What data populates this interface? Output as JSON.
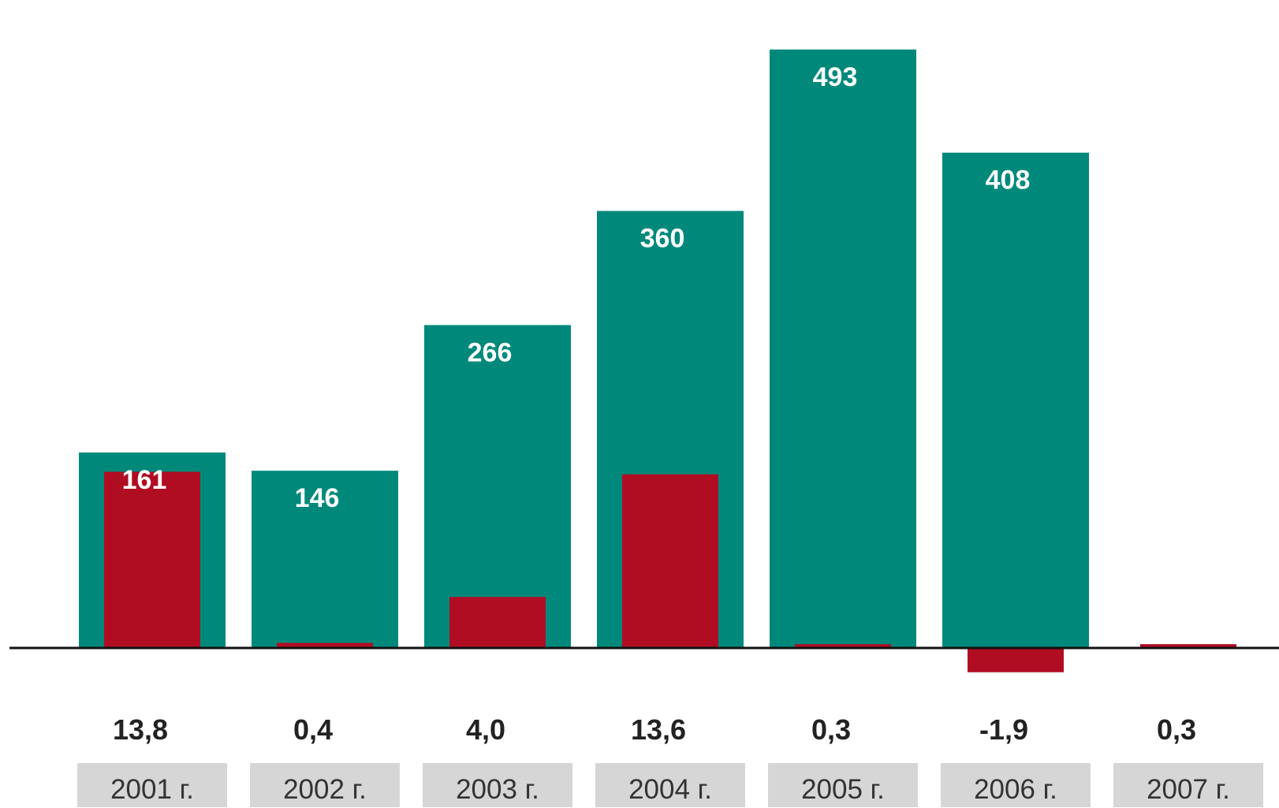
{
  "chart_data": {
    "type": "bar",
    "title": "",
    "xlabel": "",
    "ylabel": "",
    "categories": [
      "2001 г.",
      "2002 г.",
      "2003 г.",
      "2004 г.",
      "2005 г.",
      "2006 г.",
      "2007 г."
    ],
    "series": [
      {
        "values": [
          161,
          146,
          266,
          360,
          493,
          408,
          null
        ],
        "value_labels": [
          "161",
          "146",
          "266",
          "360",
          "493",
          "408",
          ""
        ],
        "color": "#00897B"
      },
      {
        "values": [
          13.8,
          0.4,
          4.0,
          13.6,
          0.3,
          -1.9,
          0.3
        ],
        "value_labels": [
          "13,8",
          "0,4",
          "4,0",
          "13,6",
          "0,3",
          "-1,9",
          "0,3"
        ],
        "color": "#B00D23"
      }
    ],
    "year_label_background": "#D6D6D6",
    "axis_color": "#111111",
    "grid": false,
    "legend": "none"
  }
}
